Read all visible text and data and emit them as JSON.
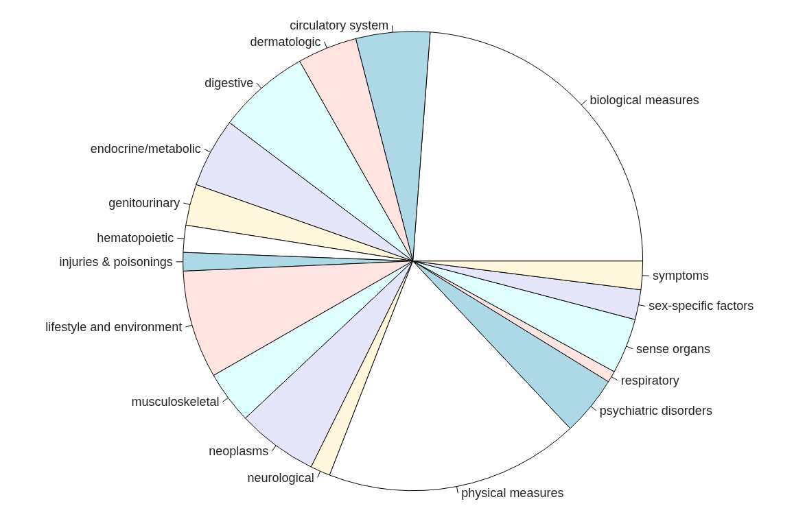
{
  "chart_data": {
    "type": "pie",
    "categories": [
      "biological measures",
      "circulatory system",
      "dermatologic",
      "digestive",
      "endocrine/metabolic",
      "genitourinary",
      "hematopoietic",
      "injuries & poisonings",
      "lifestyle and environment",
      "musculoskeletal",
      "neoplasms",
      "neurological",
      "physical measures",
      "psychiatric disorders",
      "respiratory",
      "sense organs",
      "sex-specific factors",
      "symptoms"
    ],
    "values": [
      23.8,
      5.2,
      4.2,
      6.5,
      4.9,
      2.9,
      1.9,
      1.3,
      7.6,
      3.7,
      5.7,
      1.4,
      17.9,
      4.2,
      0.8,
      3.9,
      2.1,
      2.0
    ],
    "colors": [
      "#ffffff",
      "#add8e6",
      "#ffe4e1",
      "#e0ffff",
      "#e6e6fa",
      "#fff8dc",
      "#ffffff",
      "#add8e6",
      "#ffe4e1",
      "#e0ffff",
      "#e6e6fa",
      "#fff8dc",
      "#ffffff",
      "#add8e6",
      "#ffe4e1",
      "#e0ffff",
      "#e6e6fa",
      "#fff8dc"
    ]
  }
}
